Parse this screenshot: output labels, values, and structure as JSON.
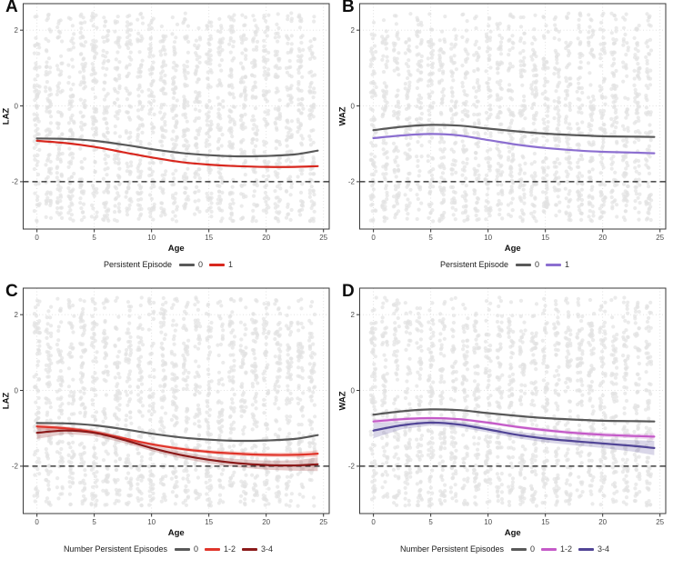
{
  "figure": {
    "background": "#FFFFFF",
    "grid_color": "#DEDEDE",
    "border_color": "#3a3a3a",
    "tick_text_color": "#4d4d4d",
    "scatter_color": "#E2E2E2",
    "dashed_line_color": "#1a1a1a"
  },
  "chart_data": [
    {
      "type": "scatter",
      "label": "A",
      "xlabel": "Age",
      "ylabel": "LAZ",
      "legend_title": "Persistent Episode",
      "x_ticks": [
        0,
        5,
        10,
        15,
        20,
        25
      ],
      "y_ticks": [
        -2,
        0,
        2
      ],
      "xlim": [
        -1.2,
        25.5
      ],
      "ylim": [
        -3.25,
        2.7
      ],
      "grid": "dotted",
      "legend_position": "bottom",
      "dashed_hline": -2,
      "x": [
        0,
        2.5,
        5,
        7.5,
        10,
        12.5,
        15,
        17.5,
        20,
        22.5,
        24.5
      ],
      "series": [
        {
          "name": "0",
          "color": "#595959",
          "values": [
            -0.86,
            -0.87,
            -0.92,
            -1.02,
            -1.14,
            -1.24,
            -1.3,
            -1.33,
            -1.32,
            -1.28,
            -1.18
          ]
        },
        {
          "name": "1",
          "color": "#D8271E",
          "values": [
            -0.92,
            -0.98,
            -1.08,
            -1.22,
            -1.36,
            -1.48,
            -1.55,
            -1.59,
            -1.61,
            -1.61,
            -1.59
          ]
        }
      ],
      "scatter": {
        "color": "#E2E2E2",
        "x_min": 0,
        "x_max": 24,
        "x_step": 1,
        "per_column": 80,
        "y_min": -3.05,
        "y_max": 2.45,
        "seed": 11
      }
    },
    {
      "type": "scatter",
      "label": "B",
      "xlabel": "Age",
      "ylabel": "WAZ",
      "legend_title": "Persistent Episode",
      "x_ticks": [
        0,
        5,
        10,
        15,
        20,
        25
      ],
      "y_ticks": [
        -2,
        0,
        2
      ],
      "xlim": [
        -1.2,
        25.5
      ],
      "ylim": [
        -3.25,
        2.7
      ],
      "grid": "dotted",
      "legend_position": "bottom",
      "dashed_hline": -2,
      "x": [
        0,
        2.5,
        5,
        7.5,
        10,
        12.5,
        15,
        17.5,
        20,
        22.5,
        24.5
      ],
      "series": [
        {
          "name": "0",
          "color": "#595959",
          "values": [
            -0.64,
            -0.55,
            -0.5,
            -0.52,
            -0.6,
            -0.67,
            -0.73,
            -0.77,
            -0.8,
            -0.81,
            -0.82
          ]
        },
        {
          "name": "1",
          "color": "#8C6FD0",
          "values": [
            -0.85,
            -0.78,
            -0.74,
            -0.78,
            -0.9,
            -1.02,
            -1.11,
            -1.17,
            -1.21,
            -1.23,
            -1.25
          ]
        }
      ],
      "scatter": {
        "color": "#E2E2E2",
        "x_min": 0,
        "x_max": 24,
        "x_step": 1,
        "per_column": 80,
        "y_min": -3.05,
        "y_max": 2.45,
        "seed": 22
      }
    },
    {
      "type": "scatter",
      "label": "C",
      "xlabel": "Age",
      "ylabel": "LAZ",
      "legend_title": "Number Persistent Episodes",
      "x_ticks": [
        0,
        5,
        10,
        15,
        20,
        25
      ],
      "y_ticks": [
        -2,
        0,
        2
      ],
      "xlim": [
        -1.2,
        25.5
      ],
      "ylim": [
        -3.25,
        2.7
      ],
      "grid": "dotted",
      "legend_position": "bottom",
      "dashed_hline": -2,
      "x": [
        0,
        2.5,
        5,
        7.5,
        10,
        12.5,
        15,
        17.5,
        20,
        22.5,
        24.5
      ],
      "series": [
        {
          "name": "0",
          "color": "#595959",
          "values": [
            -0.86,
            -0.87,
            -0.92,
            -1.02,
            -1.14,
            -1.24,
            -1.3,
            -1.33,
            -1.32,
            -1.28,
            -1.18
          ]
        },
        {
          "name": "1-2",
          "color": "#E0352B",
          "values": [
            -0.95,
            -1.0,
            -1.1,
            -1.26,
            -1.42,
            -1.54,
            -1.62,
            -1.67,
            -1.7,
            -1.7,
            -1.67
          ],
          "ribbon": [
            0.08,
            0.05,
            0.04,
            0.04,
            0.04,
            0.05,
            0.05,
            0.06,
            0.06,
            0.07,
            0.09
          ]
        },
        {
          "name": "3-4",
          "color": "#8B1A1A",
          "values": [
            -1.12,
            -1.06,
            -1.12,
            -1.3,
            -1.52,
            -1.7,
            -1.83,
            -1.92,
            -1.97,
            -1.98,
            -1.95
          ],
          "ribbon": [
            0.16,
            0.09,
            0.08,
            0.08,
            0.08,
            0.09,
            0.1,
            0.11,
            0.12,
            0.14,
            0.18
          ]
        }
      ],
      "scatter": {
        "color": "#E2E2E2",
        "x_min": 0,
        "x_max": 24,
        "x_step": 1,
        "per_column": 80,
        "y_min": -3.05,
        "y_max": 2.45,
        "seed": 33
      }
    },
    {
      "type": "scatter",
      "label": "D",
      "xlabel": "Age",
      "ylabel": "WAZ",
      "legend_title": "Number Persistent Episodes",
      "x_ticks": [
        0,
        5,
        10,
        15,
        20,
        25
      ],
      "y_ticks": [
        -2,
        0,
        2
      ],
      "xlim": [
        -1.2,
        25.5
      ],
      "ylim": [
        -3.25,
        2.7
      ],
      "grid": "dotted",
      "legend_position": "bottom",
      "dashed_hline": -2,
      "x": [
        0,
        2.5,
        5,
        7.5,
        10,
        12.5,
        15,
        17.5,
        20,
        22.5,
        24.5
      ],
      "series": [
        {
          "name": "0",
          "color": "#595959",
          "values": [
            -0.64,
            -0.55,
            -0.5,
            -0.52,
            -0.6,
            -0.67,
            -0.73,
            -0.77,
            -0.8,
            -0.81,
            -0.82
          ]
        },
        {
          "name": "1-2",
          "color": "#C45AC8",
          "values": [
            -0.82,
            -0.76,
            -0.73,
            -0.76,
            -0.85,
            -0.96,
            -1.05,
            -1.12,
            -1.17,
            -1.2,
            -1.22
          ],
          "ribbon": [
            0.06,
            0.04,
            0.03,
            0.03,
            0.04,
            0.04,
            0.05,
            0.05,
            0.06,
            0.06,
            0.08
          ]
        },
        {
          "name": "3-4",
          "color": "#514596",
          "values": [
            -1.06,
            -0.92,
            -0.85,
            -0.9,
            -1.03,
            -1.17,
            -1.27,
            -1.34,
            -1.4,
            -1.46,
            -1.52
          ],
          "ribbon": [
            0.2,
            0.1,
            0.08,
            0.08,
            0.08,
            0.09,
            0.1,
            0.11,
            0.12,
            0.15,
            0.19
          ]
        }
      ],
      "scatter": {
        "color": "#E2E2E2",
        "x_min": 0,
        "x_max": 24,
        "x_step": 1,
        "per_column": 80,
        "y_min": -3.05,
        "y_max": 2.45,
        "seed": 44
      }
    }
  ]
}
